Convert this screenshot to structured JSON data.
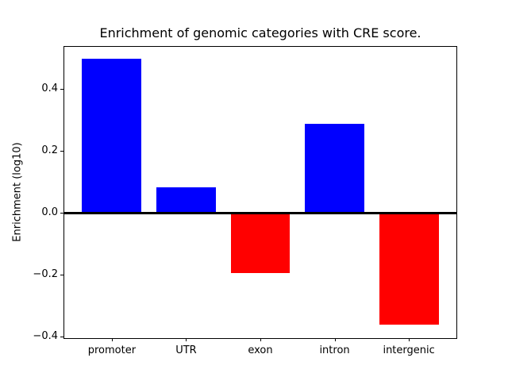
{
  "chart_data": {
    "type": "bar",
    "title": "Enrichment of genomic categories with CRE score.",
    "xlabel": "",
    "ylabel": "Enrichment (log10)",
    "categories": [
      "promoter",
      "UTR",
      "exon",
      "intron",
      "intergenic"
    ],
    "values": [
      0.497,
      0.083,
      -0.196,
      0.288,
      -0.362
    ],
    "bar_colors": [
      "#0000ff",
      "#0000ff",
      "#ff0000",
      "#0000ff",
      "#ff0000"
    ],
    "positive_color": "#0000ff",
    "negative_color": "#ff0000",
    "bar_width": 0.8,
    "xlim": [
      -0.64,
      4.64
    ],
    "ylim": [
      -0.405,
      0.536
    ],
    "yticks": {
      "values": [
        0.4,
        0.2,
        0.0,
        -0.2,
        -0.4
      ],
      "labels": [
        "0.4",
        "0.2",
        "0.0",
        "−0.2",
        "−0.4"
      ]
    },
    "zero_line": true,
    "grid": false,
    "legend": null,
    "axis_color": "#000000",
    "background_color": "#ffffff"
  }
}
